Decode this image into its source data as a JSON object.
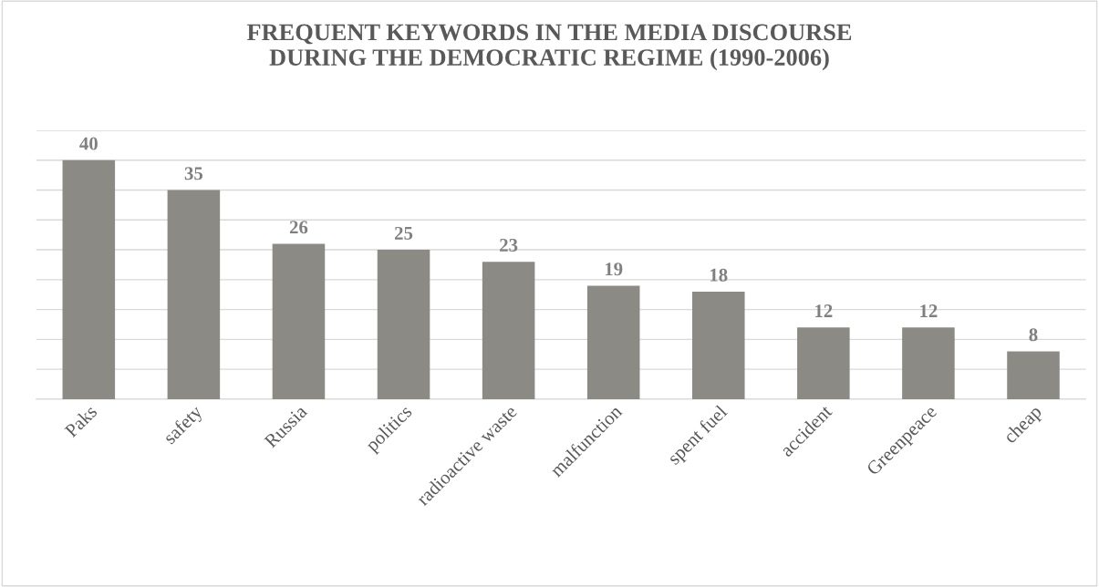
{
  "chart_data": {
    "type": "bar",
    "title": "FREQUENT KEYWORDS IN THE MEDIA DISCOURSE\nDURING THE DEMOCRATIC REGIME (1990-2006)",
    "categories": [
      "Paks",
      "safety",
      "Russia",
      "politics",
      "radioactive waste",
      "malfunction",
      "spent fuel",
      "accident",
      "Greenpeace",
      "cheap"
    ],
    "values": [
      40,
      35,
      26,
      25,
      23,
      19,
      18,
      12,
      12,
      8
    ],
    "color": "#8b8a84",
    "ylim": [
      0,
      45
    ],
    "yticks": [
      {
        "value": 0,
        "label": null
      },
      {
        "value": 5,
        "label": null
      },
      {
        "value": 10,
        "label": null
      },
      {
        "value": 15,
        "label": null
      },
      {
        "value": 20,
        "label": null
      },
      {
        "value": 25,
        "label": null
      },
      {
        "value": 30,
        "label": null
      },
      {
        "value": 35,
        "label": null
      },
      {
        "value": 40,
        "label": null
      },
      {
        "value": 45,
        "label": null
      }
    ],
    "grid": "y",
    "tick_labels": "x",
    "data_labels": true
  }
}
